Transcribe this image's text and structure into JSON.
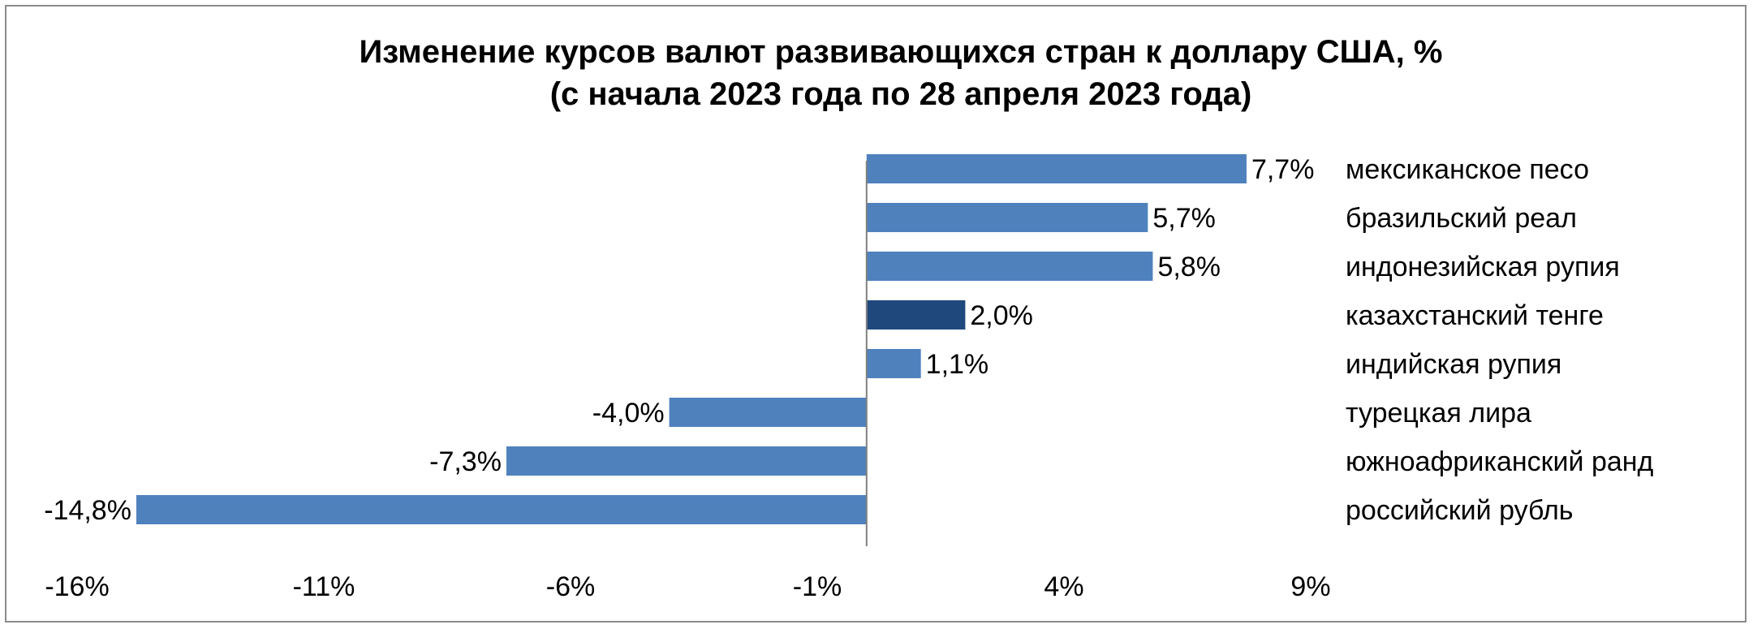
{
  "chart_data": {
    "type": "bar",
    "orientation": "horizontal",
    "title": [
      "Изменение курсов валют развивающихся стран к доллару США, %",
      "(с начала 2023 года по 28 апреля 2023 года)"
    ],
    "xlabel": "",
    "ylabel": "",
    "xlim": [
      -16,
      9
    ],
    "x_ticks": [
      -16,
      -11,
      -6,
      -1,
      4,
      9
    ],
    "x_tick_labels": [
      "-16%",
      "-11%",
      "-6%",
      "-1%",
      "4%",
      "9%"
    ],
    "grid": false,
    "categories": [
      "мексиканское песо",
      "бразильский реал",
      "индонезийская рупия",
      "казахстанский тенге",
      "индийская рупия",
      "турецкая лира",
      "южноафриканский ранд",
      "российский рубль"
    ],
    "values": [
      7.7,
      5.7,
      5.8,
      2.0,
      1.1,
      -4.0,
      -7.3,
      -14.8
    ],
    "value_labels": [
      "7,7%",
      "5,7%",
      "5,8%",
      "2,0%",
      "1,1%",
      "-4,0%",
      "-7,3%",
      "-14,8%"
    ],
    "highlight_category": "казахстанский тенге",
    "colors": {
      "bar": "#4f81bd",
      "highlight": "#1f497d",
      "axis": "#808080"
    }
  }
}
